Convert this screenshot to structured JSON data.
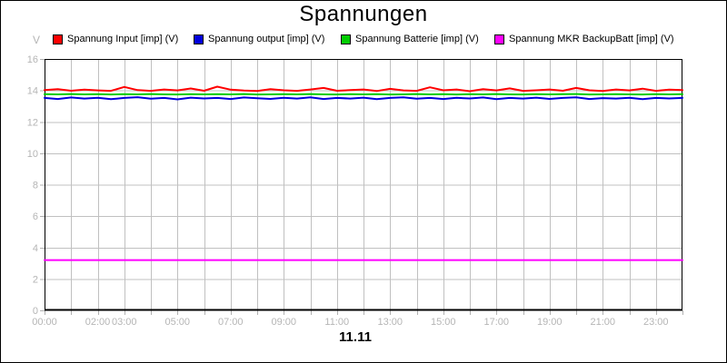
{
  "title": "Spannungen",
  "y_axis_unit": "V",
  "date_label": "11.11",
  "legend": {
    "items": [
      {
        "label": "Spannung Input [imp] (V)",
        "color": "#ff0000"
      },
      {
        "label": "Spannung output [imp] (V)",
        "color": "#0000dd"
      },
      {
        "label": "Spannung Batterie [imp] (V)",
        "color": "#00cc00"
      },
      {
        "label": "Spannung MKR BackupBatt [imp] (V)",
        "color": "#ff00ff"
      }
    ]
  },
  "colors": {
    "background": "#ffffff",
    "plot_border": "#000000",
    "gridline": "#c0c0c0",
    "tick": "#b0b0b0",
    "axis_label": "#b5b5b5"
  },
  "chart_data": {
    "type": "line",
    "title": "Spannungen",
    "xlabel": "11.11",
    "ylabel": "V",
    "ylim": [
      0,
      16
    ],
    "xlim_hours": [
      0,
      24
    ],
    "grid": true,
    "legend_position": "top",
    "y_ticks": [
      0,
      2,
      4,
      6,
      8,
      10,
      12,
      14,
      16
    ],
    "x_tick_labels": [
      {
        "hour": 0,
        "label": "00:00"
      },
      {
        "hour": 2,
        "label": "02:00"
      },
      {
        "hour": 3,
        "label": "03:00"
      },
      {
        "hour": 5,
        "label": "05:00"
      },
      {
        "hour": 7,
        "label": "07:00"
      },
      {
        "hour": 9,
        "label": "09:00"
      },
      {
        "hour": 11,
        "label": "11:00"
      },
      {
        "hour": 13,
        "label": "13:00"
      },
      {
        "hour": 15,
        "label": "15:00"
      },
      {
        "hour": 17,
        "label": "17:00"
      },
      {
        "hour": 19,
        "label": "19:00"
      },
      {
        "hour": 21,
        "label": "21:00"
      },
      {
        "hour": 23,
        "label": "23:00"
      }
    ],
    "x_start_hour": 0,
    "x_step_hours": 0.5,
    "series": [
      {
        "name": "Spannung Input [imp] (V)",
        "color": "#ff0000",
        "values": [
          14.02,
          14.08,
          13.98,
          14.05,
          14.0,
          13.97,
          14.22,
          14.02,
          13.97,
          14.06,
          14.0,
          14.12,
          13.98,
          14.24,
          14.05,
          13.99,
          13.96,
          14.08,
          14.01,
          13.97,
          14.06,
          14.16,
          13.98,
          14.02,
          14.06,
          13.96,
          14.1,
          14.0,
          13.97,
          14.2,
          14.01,
          14.06,
          13.95,
          14.08,
          14.0,
          14.13,
          13.97,
          14.01,
          14.06,
          13.98,
          14.16,
          14.01,
          13.96,
          14.06,
          14.0,
          14.11,
          13.97,
          14.05,
          14.02
        ]
      },
      {
        "name": "Spannung output [imp] (V)",
        "color": "#0000dd",
        "values": [
          13.52,
          13.45,
          13.55,
          13.48,
          13.53,
          13.44,
          13.52,
          13.57,
          13.47,
          13.52,
          13.43,
          13.54,
          13.49,
          13.52,
          13.45,
          13.55,
          13.5,
          13.46,
          13.53,
          13.48,
          13.56,
          13.45,
          13.52,
          13.48,
          13.54,
          13.44,
          13.52,
          13.56,
          13.47,
          13.52,
          13.45,
          13.53,
          13.49,
          13.55,
          13.44,
          13.52,
          13.48,
          13.54,
          13.46,
          13.52,
          13.56,
          13.45,
          13.51,
          13.48,
          13.53,
          13.44,
          13.52,
          13.49,
          13.52
        ]
      },
      {
        "name": "Spannung Batterie [imp] (V)",
        "color": "#00cc00",
        "values": [
          13.76,
          13.75,
          13.77,
          13.75,
          13.76,
          13.74,
          13.76,
          13.75,
          13.77,
          13.75,
          13.74,
          13.76,
          13.75,
          13.76,
          13.75,
          13.77,
          13.74,
          13.75,
          13.76,
          13.75,
          13.77,
          13.75,
          13.74,
          13.76,
          13.75,
          13.76,
          13.74,
          13.75,
          13.77,
          13.75,
          13.76,
          13.74,
          13.76,
          13.75,
          13.77,
          13.75,
          13.74,
          13.76,
          13.75,
          13.76,
          13.77,
          13.74,
          13.75,
          13.76,
          13.75,
          13.74,
          13.76,
          13.75,
          13.76
        ]
      },
      {
        "name": "Spannung MKR BackupBatt [imp] (V)",
        "color": "#ff00ff",
        "values": [
          3.2,
          3.2,
          3.2,
          3.2,
          3.2,
          3.2,
          3.2,
          3.2,
          3.2,
          3.2,
          3.2,
          3.2,
          3.2,
          3.2,
          3.2,
          3.2,
          3.2,
          3.2,
          3.2,
          3.2,
          3.2,
          3.2,
          3.2,
          3.2,
          3.2,
          3.2,
          3.2,
          3.2,
          3.2,
          3.2,
          3.2,
          3.2,
          3.2,
          3.2,
          3.2,
          3.2,
          3.2,
          3.2,
          3.2,
          3.2,
          3.2,
          3.2,
          3.2,
          3.2,
          3.2,
          3.2,
          3.2,
          3.2,
          3.2
        ]
      }
    ]
  }
}
